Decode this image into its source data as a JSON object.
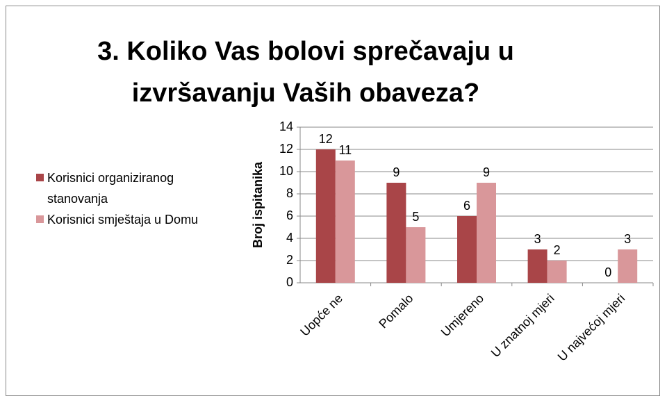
{
  "chart_data": {
    "type": "bar",
    "title": "3. Koliko Vas bolovi sprečavaju u izvršavanju Vaših obaveza?",
    "y_label": "Broj ispitanika",
    "categories": [
      "Uopće ne",
      "Pomalo",
      "Umjereno",
      "U znatnoj mjeri",
      "U najvećoj mjeri"
    ],
    "series": [
      {
        "name": "Korisnici organiziranog stanovanja",
        "color": "#a94548",
        "values": [
          12,
          9,
          6,
          3,
          0
        ]
      },
      {
        "name": "Korisnici smještaja u Domu",
        "color": "#d9979a",
        "values": [
          11,
          5,
          9,
          2,
          3
        ]
      }
    ],
    "ylim": [
      0,
      14
    ],
    "yticks": [
      0,
      2,
      4,
      6,
      8,
      10,
      12,
      14
    ],
    "grid": true,
    "legend": "left"
  }
}
